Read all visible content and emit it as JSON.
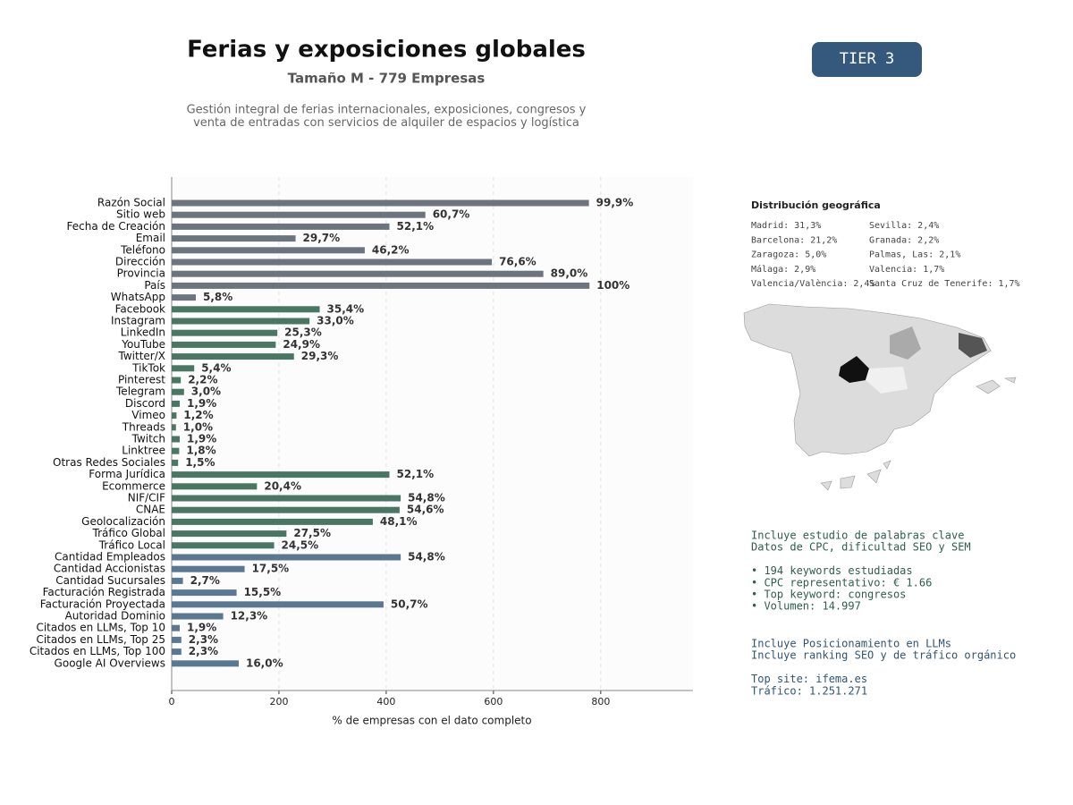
{
  "chart_data": {
    "type": "barh",
    "title": "Ferias y exposiciones globales",
    "subtitle": "Tamaño M - 779 Empresas",
    "description": [
      "Gestión integral de ferias internacionales, exposiciones, congresos y",
      "venta de entradas con servicios de alquiler de espacios y logística"
    ],
    "x_label": "% de empresas con el dato completo",
    "categories": [
      "Razón Social",
      "Sitio web",
      "Fecha de Creación",
      "Email",
      "Teléfono",
      "Dirección",
      "Provincia",
      "País",
      "WhatsApp",
      "Facebook",
      "Instagram",
      "LinkedIn",
      "YouTube",
      "Twitter/X",
      "TikTok",
      "Pinterest",
      "Telegram",
      "Discord",
      "Vimeo",
      "Threads",
      "Twitch",
      "Linktree",
      "Otras Redes Sociales",
      "Forma Jurídica",
      "Ecommerce",
      "NIF/CIF",
      "CNAE",
      "Geolocalización",
      "Tráfico Global",
      "Tráfico Local",
      "Cantidad Empleados",
      "Cantidad Accionistas",
      "Cantidad Sucursales",
      "Facturación Registrada",
      "Facturación Proyectada",
      "Autoridad Dominio",
      "Citados en LLMs, Top 10",
      "Citados en LLMs, Top 25",
      "Citados en LLMs, Top 100",
      "Google AI Overviews"
    ],
    "values": [
      778,
      473,
      406,
      231,
      360,
      597,
      693,
      779,
      45,
      276,
      257,
      197,
      194,
      228,
      42,
      17,
      23,
      15,
      9,
      8,
      15,
      14,
      12,
      406,
      159,
      427,
      425,
      375,
      214,
      191,
      427,
      136,
      21,
      121,
      395,
      96,
      15,
      18,
      18,
      125
    ],
    "value_labels": [
      "99,9%",
      "60,7%",
      "52,1%",
      "29,7%",
      "46,2%",
      "76,6%",
      "89,0%",
      "100%",
      "5,8%",
      "35,4%",
      "33,0%",
      "25,3%",
      "24,9%",
      "29,3%",
      "5,4%",
      "2,2%",
      "3,0%",
      "1,9%",
      "1,2%",
      "1,0%",
      "1,9%",
      "1,8%",
      "1,5%",
      "52,1%",
      "20,4%",
      "54,8%",
      "54,6%",
      "48,1%",
      "27,5%",
      "24,5%",
      "54,8%",
      "17,5%",
      "2,7%",
      "15,5%",
      "50,7%",
      "12,3%",
      "1,9%",
      "2,3%",
      "2,3%",
      "16,0%"
    ],
    "colors": [
      "#6c757d",
      "#6c757d",
      "#6c757d",
      "#6c757d",
      "#6c757d",
      "#6c757d",
      "#6c757d",
      "#6c757d",
      "#6c757d",
      "#4a7764",
      "#4a7764",
      "#4a7764",
      "#4a7764",
      "#4a7764",
      "#4a7764",
      "#4a7764",
      "#4a7764",
      "#4a7764",
      "#4a7764",
      "#4a7764",
      "#4a7764",
      "#4a7764",
      "#4a7764",
      "#4a7764",
      "#4a7764",
      "#4a7764",
      "#4a7764",
      "#4a7764",
      "#4a7764",
      "#4a7764",
      "#5a7891",
      "#5a7891",
      "#5a7891",
      "#5a7891",
      "#5a7891",
      "#5a7891",
      "#5a7891",
      "#5a7891",
      "#5a7891",
      "#5a7891"
    ],
    "xlim": [
      0,
      972
    ],
    "xticks": [
      0,
      200,
      400,
      600,
      800
    ],
    "grid": true
  },
  "badge": "TIER 3",
  "geo": {
    "title": "Distribución geográfica",
    "items": [
      "Madrid: 31,3%",
      "Barcelona: 21,2%",
      "Zaragoza: 5,0%",
      "Málaga: 2,9%",
      "Valencia/València: 2,4%",
      "Sevilla: 2,4%",
      "Granada: 2,2%",
      "Palmas, Las: 2,1%",
      "Valencia: 1,7%",
      "Santa Cruz de Tenerife: 1,7%"
    ]
  },
  "keywords": [
    "Incluye estudio de palabras clave",
    "Datos de CPC, dificultad SEO y SEM",
    "",
    "• 194 keywords estudiadas",
    "• CPC representativo: € 1.66",
    "• Top keyword: congresos",
    "• Volumen: 14.997"
  ],
  "llm": [
    "Incluye Posicionamiento en LLMs",
    "Incluye ranking SEO y de tráfico orgánico",
    "",
    "Top site: ifema.es",
    "Tráfico: 1.251.271"
  ]
}
